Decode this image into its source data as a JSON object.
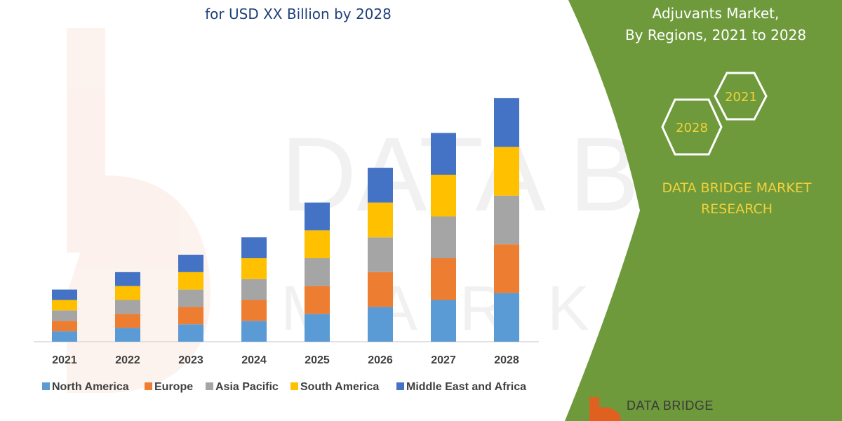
{
  "title_lines": [
    "for USD XX Billion by 2028"
  ],
  "panel": {
    "lines": [
      "Adjuvants Market,",
      "By Regions, 2021 to 2028"
    ],
    "hex_labels": [
      "2021",
      "2028"
    ],
    "brand_lines": [
      "DATA BRIDGE MARKET",
      "RESEARCH"
    ],
    "logo_text": "DATA BRIDGE",
    "background_color": "#6e9a3c",
    "brand_color": "#f2d13b"
  },
  "watermark": {
    "text": "DATA BRIDGE",
    "subtext": "MARKET"
  },
  "chart_data": {
    "type": "bar",
    "stacked": true,
    "categories": [
      "2021",
      "2022",
      "2023",
      "2024",
      "2025",
      "2026",
      "2027",
      "2028"
    ],
    "series": [
      {
        "name": "North America",
        "color": "#5b9bd5",
        "values": [
          3,
          4,
          5,
          6,
          8,
          10,
          12,
          14
        ]
      },
      {
        "name": "Europe",
        "color": "#ed7d31",
        "values": [
          3,
          4,
          5,
          6,
          8,
          10,
          12,
          14
        ]
      },
      {
        "name": "Asia Pacific",
        "color": "#a5a5a5",
        "values": [
          3,
          4,
          5,
          6,
          8,
          10,
          12,
          14
        ]
      },
      {
        "name": "South America",
        "color": "#ffc000",
        "values": [
          3,
          4,
          5,
          6,
          8,
          10,
          12,
          14
        ]
      },
      {
        "name": "Middle East and Africa",
        "color": "#4472c4",
        "values": [
          3,
          4,
          5,
          6,
          8,
          10,
          12,
          14
        ]
      }
    ],
    "ylim": [
      0,
      72
    ],
    "grid": false,
    "legend_position": "bottom"
  }
}
